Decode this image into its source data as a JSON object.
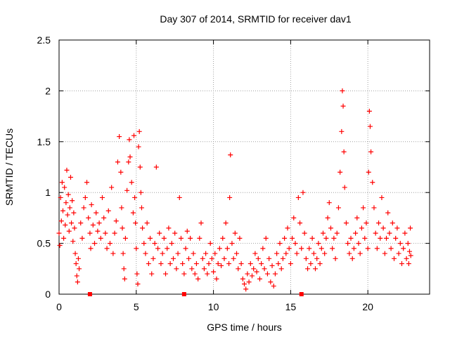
{
  "chart_data": {
    "type": "scatter",
    "title": "Day 307 of 2014, SRMTID for receiver dav1",
    "xlabel": "GPS time / hours",
    "ylabel": "SRMTID / TECUs",
    "xlim": [
      0,
      24
    ],
    "ylim": [
      0,
      2.5
    ],
    "xticks": [
      0,
      5,
      10,
      15,
      20
    ],
    "xtick_labels": [
      "0",
      "5",
      "10",
      "15",
      "20"
    ],
    "yticks": [
      0,
      0.5,
      1,
      1.5,
      2,
      2.5
    ],
    "ytick_labels": [
      "0",
      "0.5",
      "1",
      "1.5",
      "2",
      "2.5"
    ],
    "grid": true,
    "marker": "plus",
    "color": "#ff0000",
    "series": [
      {
        "name": "SRMTID",
        "points": [
          [
            0.0,
            0.6
          ],
          [
            0.05,
            0.48
          ],
          [
            0.1,
            0.95
          ],
          [
            0.15,
            0.72
          ],
          [
            0.2,
            1.1
          ],
          [
            0.25,
            0.82
          ],
          [
            0.3,
            0.55
          ],
          [
            0.35,
            1.05
          ],
          [
            0.4,
            0.68
          ],
          [
            0.45,
            0.9
          ],
          [
            0.5,
            1.22
          ],
          [
            0.55,
            0.78
          ],
          [
            0.6,
            0.98
          ],
          [
            0.65,
            0.62
          ],
          [
            0.7,
            0.85
          ],
          [
            0.75,
            1.15
          ],
          [
            0.8,
            0.7
          ],
          [
            0.85,
            0.92
          ],
          [
            0.9,
            0.52
          ],
          [
            0.95,
            0.8
          ],
          [
            1.0,
            0.65
          ],
          [
            1.05,
            0.4
          ],
          [
            1.1,
            0.3
          ],
          [
            1.15,
            0.18
          ],
          [
            1.2,
            0.12
          ],
          [
            1.25,
            0.35
          ],
          [
            1.3,
            0.25
          ],
          [
            1.4,
            0.7
          ],
          [
            1.5,
            0.55
          ],
          [
            1.6,
            0.85
          ],
          [
            1.7,
            0.95
          ],
          [
            1.8,
            1.1
          ],
          [
            1.9,
            0.75
          ],
          [
            2.0,
            0.6
          ],
          [
            2.05,
            0.45
          ],
          [
            2.1,
            0.88
          ],
          [
            2.2,
            0.68
          ],
          [
            2.3,
            0.5
          ],
          [
            2.4,
            0.8
          ],
          [
            2.5,
            0.62
          ],
          [
            2.6,
            0.7
          ],
          [
            2.7,
            0.55
          ],
          [
            2.8,
            0.95
          ],
          [
            2.9,
            0.75
          ],
          [
            3.0,
            0.6
          ],
          [
            3.1,
            0.45
          ],
          [
            3.2,
            0.82
          ],
          [
            3.3,
            0.5
          ],
          [
            3.4,
            1.05
          ],
          [
            3.5,
            0.4
          ],
          [
            3.6,
            0.6
          ],
          [
            3.7,
            0.72
          ],
          [
            3.8,
            1.3
          ],
          [
            3.9,
            1.55
          ],
          [
            4.0,
            1.2
          ],
          [
            4.05,
            0.85
          ],
          [
            4.1,
            0.65
          ],
          [
            4.15,
            0.4
          ],
          [
            4.2,
            0.25
          ],
          [
            4.25,
            0.15
          ],
          [
            4.3,
            0.55
          ],
          [
            4.4,
            1.02
          ],
          [
            4.5,
            1.3
          ],
          [
            4.55,
            1.52
          ],
          [
            4.6,
            1.35
          ],
          [
            4.7,
            1.1
          ],
          [
            4.8,
            0.8
          ],
          [
            4.85,
            1.56
          ],
          [
            4.9,
            0.95
          ],
          [
            4.95,
            0.7
          ],
          [
            5.0,
            0.45
          ],
          [
            5.05,
            0.2
          ],
          [
            5.1,
            0.1
          ],
          [
            5.15,
            1.45
          ],
          [
            5.2,
            1.6
          ],
          [
            5.25,
            1.25
          ],
          [
            5.3,
            1.0
          ],
          [
            5.35,
            0.85
          ],
          [
            5.4,
            0.65
          ],
          [
            5.5,
            0.5
          ],
          [
            5.6,
            0.4
          ],
          [
            5.7,
            0.7
          ],
          [
            5.8,
            0.3
          ],
          [
            5.9,
            0.55
          ],
          [
            6.0,
            0.2
          ],
          [
            6.1,
            0.35
          ],
          [
            6.2,
            0.5
          ],
          [
            6.3,
            1.25
          ],
          [
            6.4,
            0.45
          ],
          [
            6.5,
            0.6
          ],
          [
            6.6,
            0.3
          ],
          [
            6.7,
            0.4
          ],
          [
            6.8,
            0.55
          ],
          [
            6.9,
            0.2
          ],
          [
            7.0,
            0.45
          ],
          [
            7.1,
            0.65
          ],
          [
            7.2,
            0.3
          ],
          [
            7.3,
            0.5
          ],
          [
            7.4,
            0.35
          ],
          [
            7.5,
            0.6
          ],
          [
            7.6,
            0.25
          ],
          [
            7.7,
            0.4
          ],
          [
            7.8,
            0.95
          ],
          [
            7.9,
            0.55
          ],
          [
            8.0,
            0.3
          ],
          [
            8.1,
            0.2
          ],
          [
            8.2,
            0.45
          ],
          [
            8.3,
            0.62
          ],
          [
            8.4,
            0.35
          ],
          [
            8.5,
            0.55
          ],
          [
            8.6,
            0.25
          ],
          [
            8.7,
            0.4
          ],
          [
            8.8,
            0.2
          ],
          [
            8.9,
            0.3
          ],
          [
            9.0,
            0.15
          ],
          [
            9.1,
            0.55
          ],
          [
            9.2,
            0.7
          ],
          [
            9.3,
            0.35
          ],
          [
            9.4,
            0.25
          ],
          [
            9.5,
            0.4
          ],
          [
            9.6,
            0.2
          ],
          [
            9.7,
            0.3
          ],
          [
            9.8,
            0.5
          ],
          [
            9.9,
            0.35
          ],
          [
            10.0,
            0.22
          ],
          [
            10.1,
            0.4
          ],
          [
            10.2,
            0.15
          ],
          [
            10.3,
            0.3
          ],
          [
            10.4,
            0.45
          ],
          [
            10.5,
            0.28
          ],
          [
            10.6,
            0.55
          ],
          [
            10.7,
            0.35
          ],
          [
            10.8,
            0.7
          ],
          [
            10.9,
            0.45
          ],
          [
            11.0,
            0.3
          ],
          [
            11.05,
            0.95
          ],
          [
            11.1,
            1.37
          ],
          [
            11.2,
            0.5
          ],
          [
            11.3,
            0.35
          ],
          [
            11.4,
            0.6
          ],
          [
            11.5,
            0.4
          ],
          [
            11.6,
            0.25
          ],
          [
            11.7,
            0.55
          ],
          [
            11.8,
            0.3
          ],
          [
            11.9,
            0.15
          ],
          [
            12.0,
            0.1
          ],
          [
            12.1,
            0.05
          ],
          [
            12.2,
            0.2
          ],
          [
            12.3,
            0.12
          ],
          [
            12.4,
            0.3
          ],
          [
            12.5,
            0.18
          ],
          [
            12.6,
            0.25
          ],
          [
            12.7,
            0.4
          ],
          [
            12.8,
            0.22
          ],
          [
            12.9,
            0.35
          ],
          [
            13.0,
            0.15
          ],
          [
            13.1,
            0.3
          ],
          [
            13.2,
            0.45
          ],
          [
            13.3,
            0.25
          ],
          [
            13.4,
            0.55
          ],
          [
            13.5,
            0.2
          ],
          [
            13.6,
            0.35
          ],
          [
            13.7,
            0.12
          ],
          [
            13.8,
            0.28
          ],
          [
            13.9,
            0.08
          ],
          [
            14.0,
            0.2
          ],
          [
            14.1,
            0.4
          ],
          [
            14.2,
            0.3
          ],
          [
            14.3,
            0.5
          ],
          [
            14.4,
            0.25
          ],
          [
            14.5,
            0.35
          ],
          [
            14.6,
            0.55
          ],
          [
            14.7,
            0.4
          ],
          [
            14.8,
            0.65
          ],
          [
            14.9,
            0.45
          ],
          [
            15.0,
            0.3
          ],
          [
            15.1,
            0.55
          ],
          [
            15.2,
            0.75
          ],
          [
            15.3,
            0.5
          ],
          [
            15.4,
            0.4
          ],
          [
            15.5,
            0.95
          ],
          [
            15.6,
            0.7
          ],
          [
            15.7,
            0.45
          ],
          [
            15.8,
            1.0
          ],
          [
            15.9,
            0.6
          ],
          [
            16.0,
            0.35
          ],
          [
            16.1,
            0.25
          ],
          [
            16.2,
            0.45
          ],
          [
            16.3,
            0.3
          ],
          [
            16.4,
            0.55
          ],
          [
            16.5,
            0.4
          ],
          [
            16.6,
            0.25
          ],
          [
            16.7,
            0.35
          ],
          [
            16.8,
            0.5
          ],
          [
            16.9,
            0.3
          ],
          [
            17.0,
            0.45
          ],
          [
            17.1,
            0.6
          ],
          [
            17.2,
            0.4
          ],
          [
            17.3,
            0.55
          ],
          [
            17.4,
            0.75
          ],
          [
            17.5,
            0.9
          ],
          [
            17.6,
            0.65
          ],
          [
            17.7,
            0.45
          ],
          [
            17.8,
            0.55
          ],
          [
            17.9,
            0.35
          ],
          [
            18.0,
            0.6
          ],
          [
            18.1,
            0.85
          ],
          [
            18.2,
            1.2
          ],
          [
            18.3,
            1.6
          ],
          [
            18.35,
            2.0
          ],
          [
            18.4,
            1.85
          ],
          [
            18.45,
            1.4
          ],
          [
            18.5,
            1.05
          ],
          [
            18.6,
            0.7
          ],
          [
            18.7,
            0.5
          ],
          [
            18.8,
            0.4
          ],
          [
            18.9,
            0.55
          ],
          [
            19.0,
            0.35
          ],
          [
            19.1,
            0.45
          ],
          [
            19.2,
            0.6
          ],
          [
            19.3,
            0.75
          ],
          [
            19.4,
            0.5
          ],
          [
            19.5,
            0.4
          ],
          [
            19.6,
            0.65
          ],
          [
            19.7,
            0.85
          ],
          [
            19.8,
            0.55
          ],
          [
            19.9,
            0.7
          ],
          [
            20.0,
            0.45
          ],
          [
            20.05,
            1.2
          ],
          [
            20.1,
            1.8
          ],
          [
            20.15,
            1.65
          ],
          [
            20.2,
            1.4
          ],
          [
            20.3,
            1.1
          ],
          [
            20.4,
            0.85
          ],
          [
            20.5,
            0.6
          ],
          [
            20.6,
            0.45
          ],
          [
            20.7,
            0.7
          ],
          [
            20.8,
            0.55
          ],
          [
            20.9,
            0.95
          ],
          [
            21.0,
            0.65
          ],
          [
            21.1,
            0.4
          ],
          [
            21.2,
            0.55
          ],
          [
            21.3,
            0.8
          ],
          [
            21.4,
            0.6
          ],
          [
            21.5,
            0.45
          ],
          [
            21.6,
            0.7
          ],
          [
            21.7,
            0.35
          ],
          [
            21.8,
            0.55
          ],
          [
            21.9,
            0.65
          ],
          [
            22.0,
            0.4
          ],
          [
            22.1,
            0.5
          ],
          [
            22.2,
            0.3
          ],
          [
            22.3,
            0.45
          ],
          [
            22.4,
            0.6
          ],
          [
            22.5,
            0.35
          ],
          [
            22.6,
            0.5
          ],
          [
            22.65,
            0.3
          ],
          [
            22.7,
            0.42
          ],
          [
            22.75,
            0.65
          ],
          [
            22.78,
            0.38
          ]
        ]
      },
      {
        "name": "axis markers",
        "marker": "square",
        "points": [
          [
            2.0,
            0
          ],
          [
            8.1,
            0
          ],
          [
            15.7,
            0
          ]
        ]
      }
    ]
  }
}
